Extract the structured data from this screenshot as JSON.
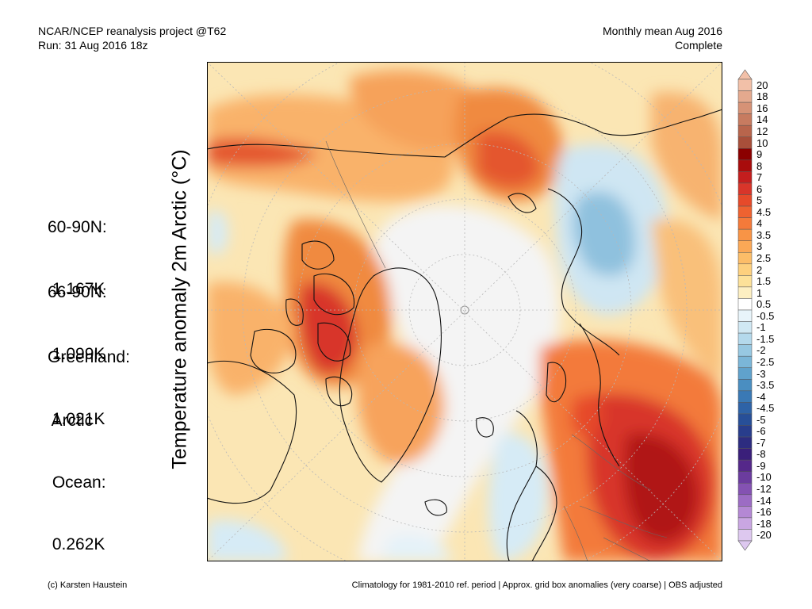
{
  "header": {
    "left_line1": "NCAR/NCEP reanalysis project @T62",
    "left_line2": "Run: 31 Aug 2016 18z",
    "right_line1": "Monthly mean Aug 2016",
    "right_line2": "Complete"
  },
  "axis_label": "Temperature anomaly 2m Arctic (°C)",
  "stats": [
    {
      "lines": [
        "60-90N:",
        " 1.167K"
      ]
    },
    {
      "lines": [
        "66-90N:",
        " 1.099K"
      ]
    },
    {
      "lines": [
        "Greenland:",
        " 1.021K"
      ]
    },
    {
      "lines": [
        " Arctic",
        " Ocean:",
        " 0.262K"
      ]
    }
  ],
  "colorbar": {
    "labels": [
      "20",
      "18",
      "16",
      "14",
      "12",
      "10",
      "9",
      "8",
      "7",
      "6",
      "5",
      "4.5",
      "4",
      "3.5",
      "3",
      "2.5",
      "2",
      "1.5",
      "1",
      "0.5",
      "-0.5",
      "-1",
      "-1.5",
      "-2",
      "-2.5",
      "-3",
      "-3.5",
      "-4",
      "-4.5",
      "-5",
      "-6",
      "-7",
      "-8",
      "-9",
      "-10",
      "-12",
      "-14",
      "-16",
      "-18",
      "-20"
    ],
    "colors": [
      "#f2c0a8",
      "#e4a98e",
      "#d69276",
      "#c77b60",
      "#b8654c",
      "#a84f3a",
      "#8b0000",
      "#a80c0c",
      "#c41e1e",
      "#d8352a",
      "#e64a2a",
      "#ee6230",
      "#f47a3a",
      "#f89446",
      "#fba856",
      "#fcbd68",
      "#fdd07e",
      "#fde199",
      "#fdefc2",
      "#ffffff",
      "#e8f4fa",
      "#d0e8f3",
      "#b4d9ec",
      "#97c8e2",
      "#7bb6d8",
      "#60a2cc",
      "#4a8ec1",
      "#3a79b5",
      "#2e63a7",
      "#274f98",
      "#283d8c",
      "#2d2c80",
      "#3a1f7a",
      "#55288a",
      "#6b3c9e",
      "#8452b2",
      "#9c6cc4",
      "#b488d4",
      "#c9a6e2",
      "#ddc8ef"
    ]
  },
  "footer": {
    "left": "(c) Karsten Haustein",
    "right": "Climatology for 1981-2010 ref. period | Approx. grid box anomalies (very coarse) | OBS adjusted"
  }
}
